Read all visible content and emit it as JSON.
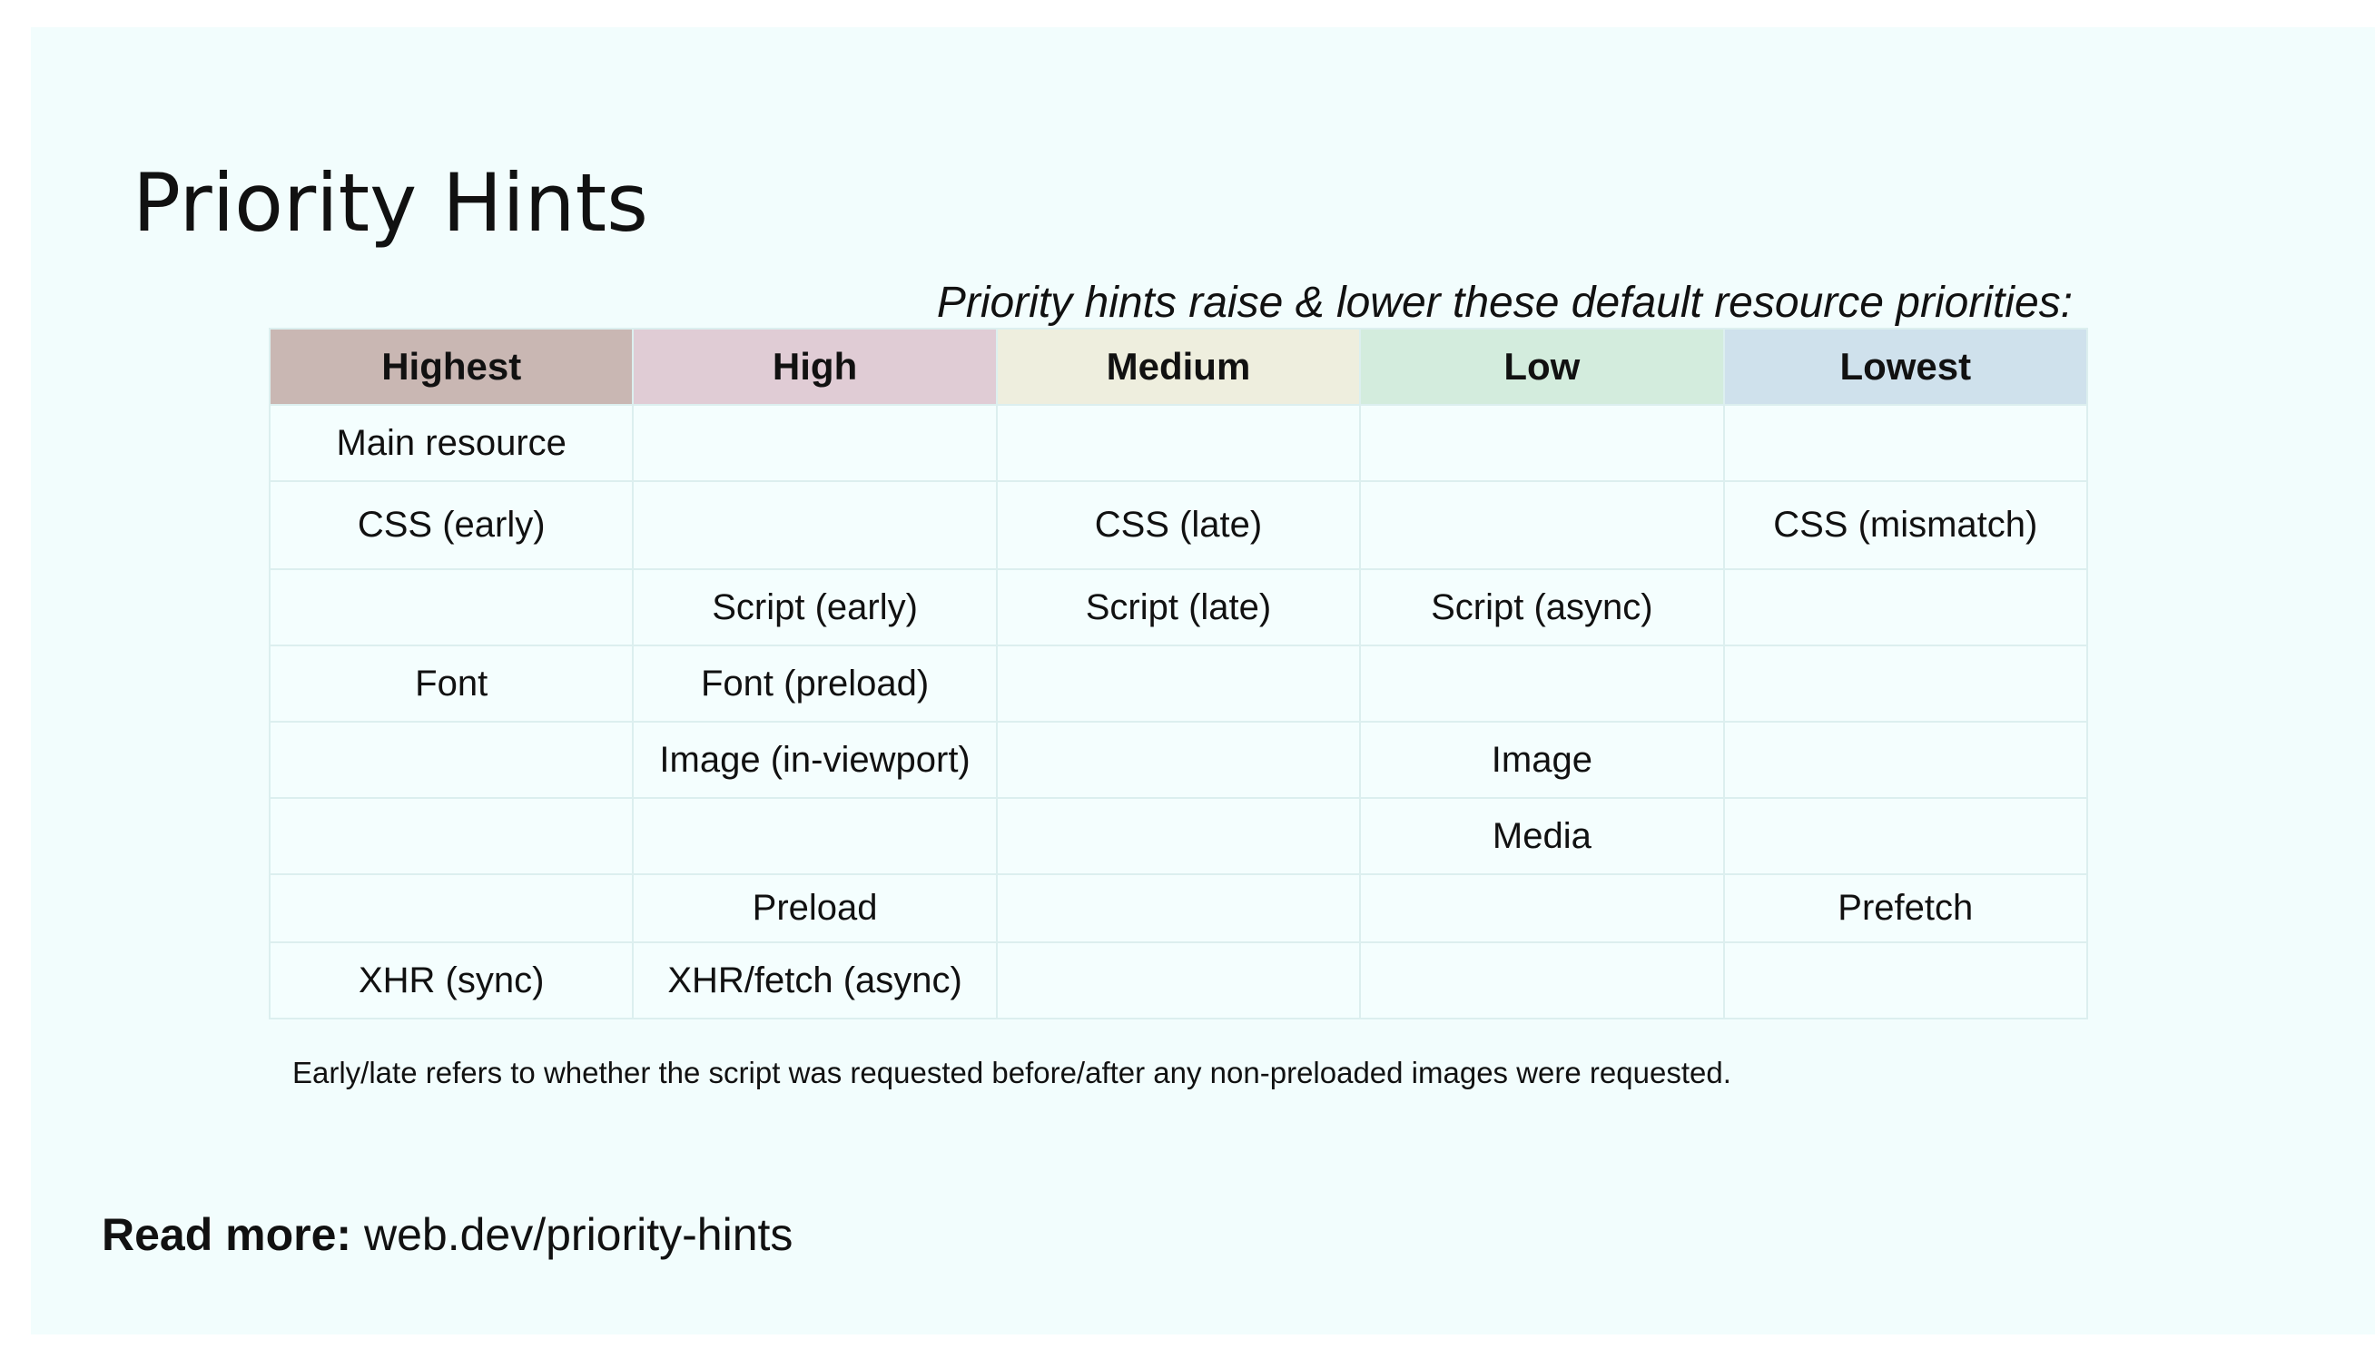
{
  "slide": {
    "title": "Priority Hints",
    "subtitle": "Priority hints raise & lower these default resource priorities:",
    "footnote": "Early/late refers to whether the script was requested before/after any non-preloaded images were requested.",
    "read_more_label": "Read more:",
    "read_more_link": "web.dev/priority-hints"
  },
  "table": {
    "headers": [
      "Highest",
      "High",
      "Medium",
      "Low",
      "Lowest"
    ],
    "header_colors": [
      "#c9b7b3",
      "#e0ccd5",
      "#eeeede",
      "#d3ecdd",
      "#cfe1ec"
    ],
    "rows": [
      [
        "Main resource",
        "",
        "",
        "",
        ""
      ],
      [
        "CSS (early)",
        "",
        "CSS (late)",
        "",
        "CSS (mismatch)"
      ],
      [
        "",
        "Script (early)",
        "Script (late)",
        "Script (async)",
        ""
      ],
      [
        "Font",
        "Font (preload)",
        "",
        "",
        ""
      ],
      [
        "",
        "Image (in-viewport)",
        "",
        "Image",
        ""
      ],
      [
        "",
        "",
        "",
        "Media",
        ""
      ],
      [
        "",
        "Preload",
        "",
        "",
        "Prefetch"
      ],
      [
        "XHR (sync)",
        "XHR/fetch (async)",
        "",
        "",
        ""
      ]
    ]
  }
}
